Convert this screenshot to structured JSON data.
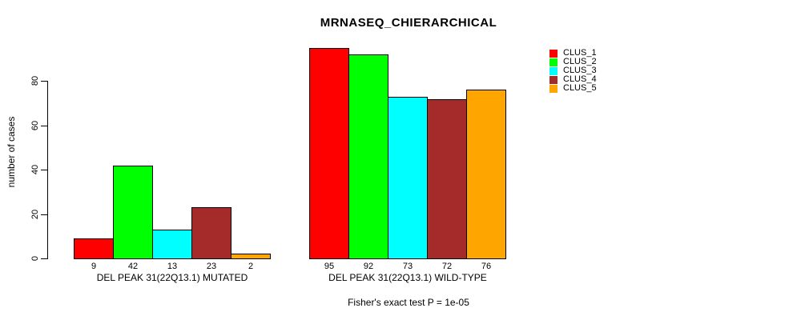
{
  "chart_data": {
    "type": "bar",
    "title": "MRNASEQ_CHIERARCHICAL",
    "ylabel": "number of cases",
    "xlabel": "",
    "ylim": [
      0,
      95
    ],
    "yticks": [
      0,
      20,
      40,
      60,
      80
    ],
    "grid": false,
    "legend_position": "right",
    "legend": [
      {
        "label": "CLUS_1",
        "color": "#ff0000"
      },
      {
        "label": "CLUS_2",
        "color": "#00ff00"
      },
      {
        "label": "CLUS_3",
        "color": "#00ffff"
      },
      {
        "label": "CLUS_4",
        "color": "#a52a2a"
      },
      {
        "label": "CLUS_5",
        "color": "#ffa500"
      }
    ],
    "groups": [
      {
        "label": "DEL PEAK 31(22Q13.1) MUTATED",
        "values": [
          9,
          42,
          13,
          23,
          2
        ]
      },
      {
        "label": "DEL PEAK 31(22Q13.1) WILD-TYPE",
        "values": [
          95,
          92,
          73,
          72,
          76
        ]
      }
    ],
    "annotation": "Fisher's exact test P = 1e-05"
  },
  "colors": {
    "background": "#ffffff",
    "axis": "#000000",
    "bar_border": "#000000",
    "text": "#000000"
  }
}
